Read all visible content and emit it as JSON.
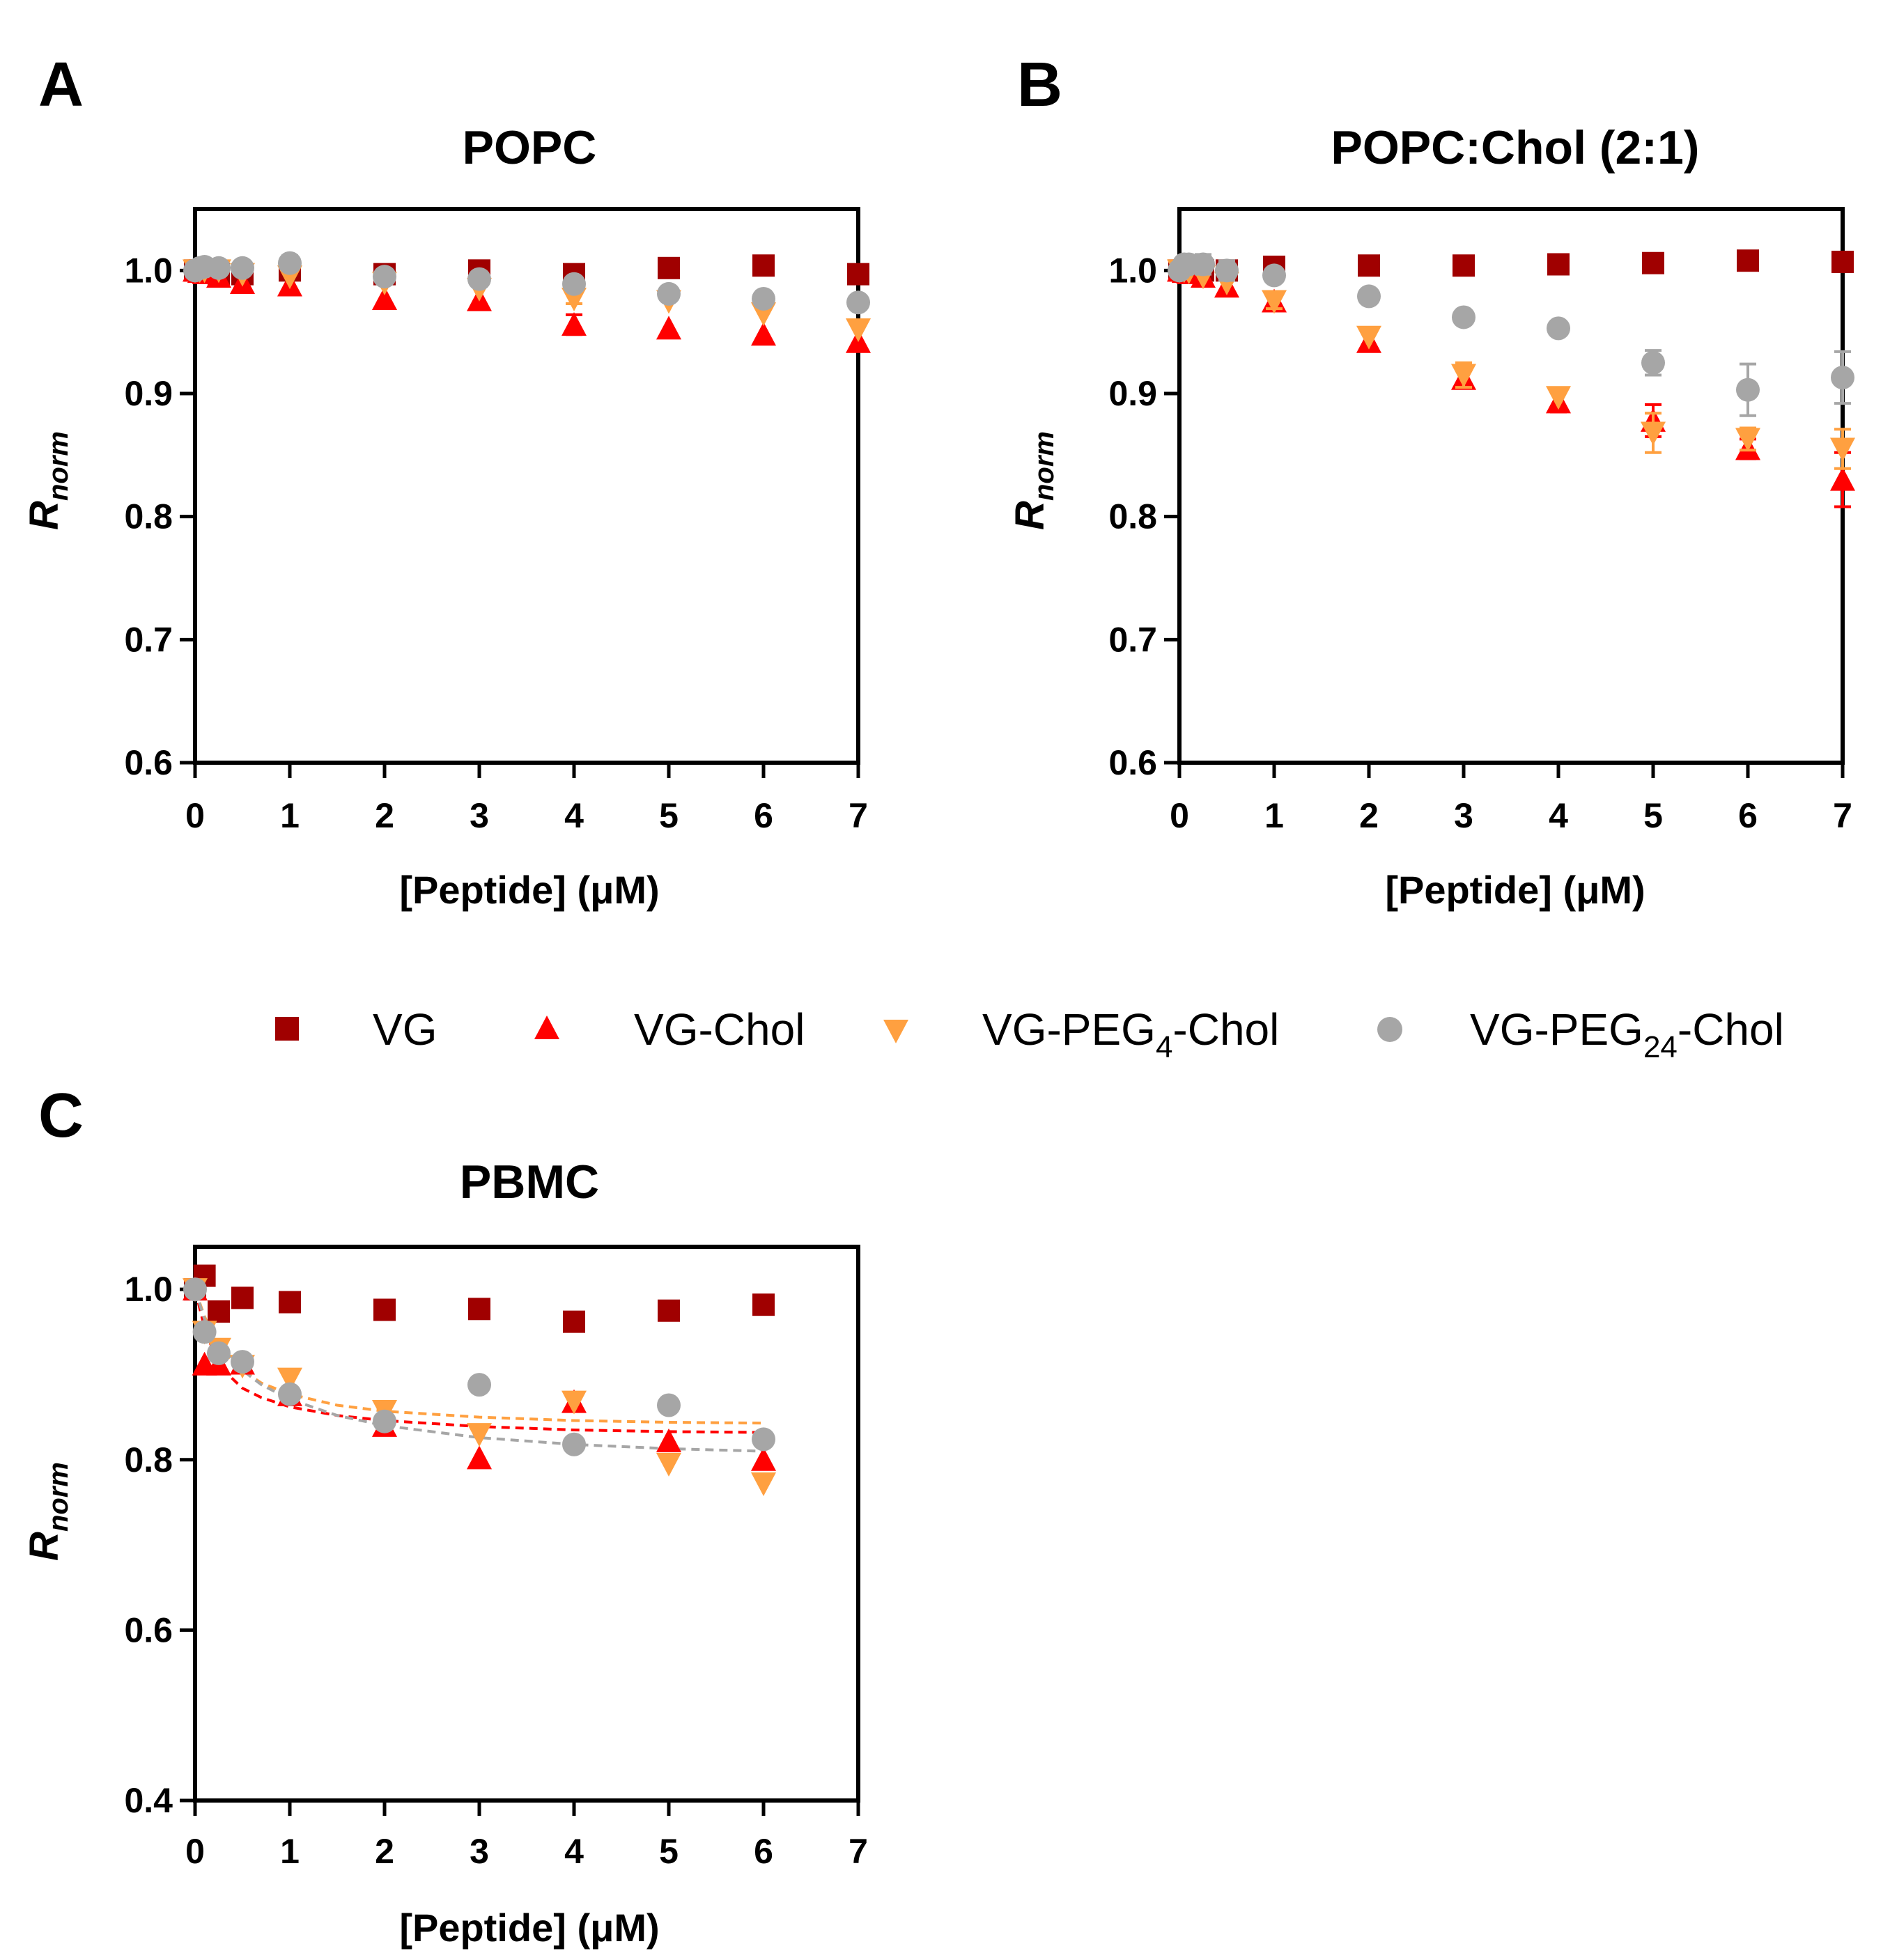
{
  "legend": [
    {
      "key": "vg",
      "label": "VG",
      "color": "#a00000",
      "marker": "square"
    },
    {
      "key": "vgchol",
      "label": "VG-Chol",
      "color": "#ff0000",
      "marker": "triangle-up"
    },
    {
      "key": "peg4",
      "label": "VG-PEG4-Chol",
      "base": "VG-PEG",
      "sub": "4",
      "rest": "-Chol",
      "color": "#ffa040",
      "marker": "triangle-down"
    },
    {
      "key": "peg24",
      "label": "VG-PEG24-Chol",
      "base": "VG-PEG",
      "sub": "24",
      "rest": "-Chol",
      "color": "#a6a6a6",
      "marker": "circle"
    }
  ],
  "chart_data": [
    {
      "panel": "A",
      "type": "scatter",
      "title": "POPC",
      "xlabel": "[Peptide] (μM)",
      "ylabel": {
        "main": "R",
        "sub": "norm"
      },
      "xlim": [
        0,
        7
      ],
      "ylim": [
        0.6,
        1.05
      ],
      "xticks": [
        0,
        1,
        2,
        3,
        4,
        5,
        6,
        7
      ],
      "yticks": [
        0.6,
        0.7,
        0.8,
        0.9,
        1.0
      ],
      "ytick_labels": [
        "0.6",
        "0.7",
        "0.8",
        "0.9",
        "1.0"
      ],
      "series": [
        {
          "key": "vg",
          "name": "VG",
          "x": [
            0,
            0.05,
            0.1,
            0.25,
            0.5,
            1,
            2,
            3,
            4,
            5,
            6,
            7
          ],
          "y": [
            1.0,
            1.0,
            1.0,
            0.997,
            0.997,
            1.0,
            0.997,
            1.0,
            0.997,
            1.002,
            1.004,
            0.997
          ],
          "err": [
            0,
            0,
            0,
            0,
            0,
            0,
            0,
            0,
            0,
            0,
            0,
            0
          ]
        },
        {
          "key": "vgchol",
          "name": "VG-Chol",
          "x": [
            0,
            0.05,
            0.1,
            0.25,
            0.5,
            1,
            2,
            3,
            4,
            5,
            6,
            7
          ],
          "y": [
            1.0,
            0.999,
            0.998,
            0.995,
            0.99,
            0.988,
            0.977,
            0.976,
            0.956,
            0.953,
            0.948,
            0.942
          ],
          "err": [
            0,
            0,
            0,
            0,
            0,
            0,
            0,
            0,
            0.008,
            0,
            0,
            0
          ]
        },
        {
          "key": "peg4",
          "name": "VG-PEG4-Chol",
          "x": [
            0,
            0.05,
            0.1,
            0.25,
            0.5,
            1,
            2,
            3,
            4,
            5,
            6,
            7
          ],
          "y": [
            1.0,
            1.0,
            1.0,
            1.0,
            0.997,
            0.995,
            0.99,
            0.985,
            0.977,
            0.975,
            0.965,
            0.952
          ],
          "err": [
            0,
            0,
            0,
            0.004,
            0,
            0,
            0,
            0,
            0.004,
            0,
            0,
            0
          ]
        },
        {
          "key": "peg24",
          "name": "VG-PEG24-Chol",
          "x": [
            0,
            0.05,
            0.1,
            0.25,
            0.5,
            1,
            2,
            3,
            4,
            5,
            6,
            7
          ],
          "y": [
            1.0,
            1.002,
            1.003,
            1.002,
            1.002,
            1.006,
            0.995,
            0.993,
            0.989,
            0.981,
            0.977,
            0.974
          ],
          "err": [
            0,
            0,
            0,
            0,
            0,
            0.006,
            0,
            0,
            0,
            0,
            0.006,
            0
          ]
        }
      ]
    },
    {
      "panel": "B",
      "type": "scatter",
      "title": "POPC:Chol (2:1)",
      "xlabel": "[Peptide] (μM)",
      "ylabel": {
        "main": "R",
        "sub": "norm"
      },
      "xlim": [
        0,
        7
      ],
      "ylim": [
        0.6,
        1.05
      ],
      "xticks": [
        0,
        1,
        2,
        3,
        4,
        5,
        6,
        7
      ],
      "yticks": [
        0.6,
        0.7,
        0.8,
        0.9,
        1.0
      ],
      "ytick_labels": [
        "0.6",
        "0.7",
        "0.8",
        "0.9",
        "1.0"
      ],
      "series": [
        {
          "key": "vg",
          "name": "VG",
          "x": [
            0,
            0.05,
            0.1,
            0.25,
            0.5,
            1,
            2,
            3,
            4,
            5,
            6,
            7
          ],
          "y": [
            1.0,
            1.0,
            1.0,
            1.0,
            1.0,
            1.003,
            1.004,
            1.004,
            1.005,
            1.006,
            1.008,
            1.007
          ],
          "err": [
            0,
            0,
            0,
            0,
            0,
            0,
            0,
            0,
            0,
            0,
            0.005,
            0
          ]
        },
        {
          "key": "vgchol",
          "name": "VG-Chol",
          "x": [
            0,
            0.05,
            0.1,
            0.25,
            0.5,
            1,
            2,
            3,
            4,
            5,
            6,
            7
          ],
          "y": [
            1.0,
            0.999,
            0.998,
            0.995,
            0.987,
            0.975,
            0.942,
            0.912,
            0.893,
            0.878,
            0.855,
            0.83
          ],
          "err": [
            0,
            0,
            0,
            0,
            0,
            0,
            0,
            0.007,
            0.008,
            0.013,
            0.008,
            0.022
          ]
        },
        {
          "key": "peg4",
          "name": "VG-PEG4-Chol",
          "x": [
            0,
            0.05,
            0.1,
            0.25,
            0.5,
            1,
            2,
            3,
            4,
            5,
            6,
            7
          ],
          "y": [
            1.0,
            1.0,
            0.999,
            0.995,
            0.99,
            0.975,
            0.946,
            0.915,
            0.897,
            0.868,
            0.863,
            0.855
          ],
          "err": [
            0,
            0,
            0,
            0,
            0,
            0.006,
            0,
            0.01,
            0,
            0.016,
            0.009,
            0.016
          ]
        },
        {
          "key": "peg24",
          "name": "VG-PEG24-Chol",
          "x": [
            0,
            0.05,
            0.1,
            0.25,
            0.5,
            1,
            2,
            3,
            4,
            5,
            6,
            7
          ],
          "y": [
            1.0,
            1.005,
            1.005,
            1.005,
            1.0,
            0.996,
            0.979,
            0.962,
            0.953,
            0.925,
            0.903,
            0.913
          ],
          "err": [
            0,
            0,
            0,
            0.008,
            0.008,
            0,
            0,
            0,
            0,
            0.01,
            0.021,
            0.021
          ]
        }
      ]
    },
    {
      "panel": "C",
      "type": "scatter",
      "title": "PBMC",
      "xlabel": "[Peptide] (μM)",
      "ylabel": {
        "main": "R",
        "sub": "norm"
      },
      "xlim": [
        0,
        7
      ],
      "ylim": [
        0.4,
        1.05
      ],
      "xticks": [
        0,
        1,
        2,
        3,
        4,
        5,
        6,
        7
      ],
      "yticks": [
        0.4,
        0.6,
        0.8,
        1.0
      ],
      "ytick_labels": [
        "0.4",
        "0.6",
        "0.8",
        "1.0"
      ],
      "series": [
        {
          "key": "vg",
          "name": "VG",
          "x": [
            0,
            0.1,
            0.25,
            0.5,
            1,
            2,
            3,
            4,
            5,
            6
          ],
          "y": [
            1.0,
            1.016,
            0.974,
            0.99,
            0.985,
            0.976,
            0.977,
            0.962,
            0.975,
            0.982
          ],
          "err": [
            0,
            0,
            0,
            0,
            0,
            0,
            0,
            0,
            0,
            0
          ]
        },
        {
          "key": "vgchol",
          "name": "VG-Chol",
          "x": [
            0,
            0.1,
            0.25,
            0.5,
            1,
            2,
            3,
            4,
            5,
            6
          ],
          "y": [
            1.0,
            0.912,
            0.912,
            0.913,
            0.876,
            0.84,
            0.802,
            0.868,
            0.822,
            0.8
          ],
          "err": [
            0,
            0,
            0,
            0,
            0,
            0,
            0,
            0,
            0,
            0
          ]
        },
        {
          "key": "peg4",
          "name": "VG-PEG4-Chol",
          "x": [
            0,
            0.1,
            0.25,
            0.5,
            1,
            2,
            3,
            4,
            5,
            6
          ],
          "y": [
            1.0,
            0.95,
            0.93,
            0.91,
            0.895,
            0.857,
            0.83,
            0.868,
            0.795,
            0.772
          ],
          "err": [
            0,
            0,
            0,
            0,
            0,
            0,
            0,
            0,
            0,
            0
          ]
        },
        {
          "key": "peg24",
          "name": "VG-PEG24-Chol",
          "x": [
            0,
            0.1,
            0.25,
            0.5,
            1,
            2,
            3,
            4,
            5,
            6
          ],
          "y": [
            1.0,
            0.95,
            0.925,
            0.915,
            0.877,
            0.845,
            0.888,
            0.818,
            0.864,
            0.824
          ],
          "err": [
            0,
            0,
            0,
            0,
            0,
            0,
            0,
            0,
            0,
            0
          ]
        }
      ],
      "fits": [
        {
          "key": "vgchol",
          "x": [
            0,
            0.1,
            0.2,
            0.3,
            0.5,
            0.7,
            1,
            1.5,
            2,
            3,
            4,
            5,
            6
          ],
          "y": [
            1.0,
            0.955,
            0.925,
            0.905,
            0.884,
            0.873,
            0.862,
            0.852,
            0.846,
            0.839,
            0.835,
            0.833,
            0.832
          ]
        },
        {
          "key": "peg4",
          "x": [
            0,
            0.1,
            0.2,
            0.3,
            0.5,
            0.7,
            1,
            1.5,
            2,
            3,
            4,
            5,
            6
          ],
          "y": [
            1.0,
            0.968,
            0.945,
            0.928,
            0.905,
            0.89,
            0.877,
            0.864,
            0.857,
            0.85,
            0.846,
            0.844,
            0.843
          ]
        },
        {
          "key": "peg24",
          "x": [
            0,
            0.1,
            0.2,
            0.3,
            0.5,
            0.7,
            1,
            1.5,
            2,
            3,
            4,
            5,
            6
          ],
          "y": [
            1.0,
            0.965,
            0.945,
            0.93,
            0.905,
            0.888,
            0.871,
            0.852,
            0.84,
            0.826,
            0.818,
            0.813,
            0.81
          ]
        }
      ]
    }
  ]
}
